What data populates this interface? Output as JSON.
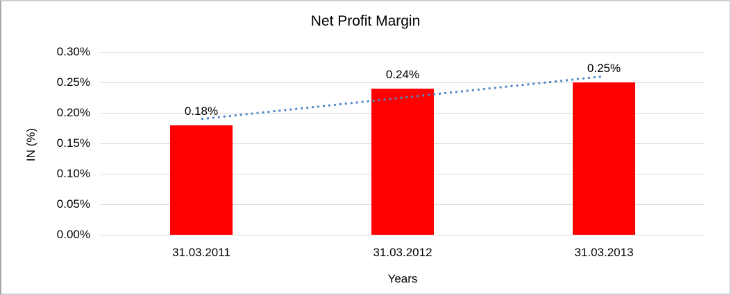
{
  "chart_data": {
    "type": "bar",
    "title": "Net Profit Margin",
    "xlabel": "Years",
    "ylabel": "IN (%)",
    "categories": [
      "31.03.2011",
      "31.03.2012",
      "31.03.2013"
    ],
    "values": [
      0.18,
      0.24,
      0.25
    ],
    "data_labels": [
      "0.18%",
      "0.24%",
      "0.25%"
    ],
    "y_ticks": [
      "0.30%",
      "0.25%",
      "0.20%",
      "0.15%",
      "0.10%",
      "0.05%",
      "0.00%"
    ],
    "ylim": [
      0,
      0.3
    ],
    "grid": true,
    "legend": "none",
    "bar_color": "#ff0000",
    "gridline_color": "#d9d9d9",
    "text_color": "#000000",
    "background_color": "#ffffff",
    "trendline": {
      "type": "linear",
      "style": "dotted",
      "color": "#4f87c8",
      "start_value": 0.19,
      "end_value": 0.26
    }
  }
}
